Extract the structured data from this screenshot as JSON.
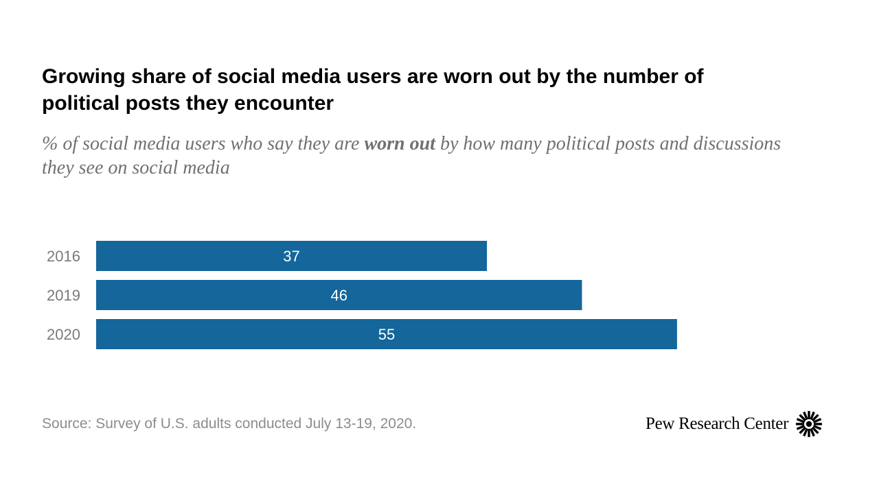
{
  "title": "Growing share of social media users are worn out by the number of political posts they encounter",
  "subtitle": {
    "before": "% of social media users who say they are ",
    "emphasis": "worn out",
    "after": " by how many political posts and discussions they see on social media"
  },
  "chart_data": {
    "type": "bar",
    "orientation": "horizontal",
    "categories": [
      "2016",
      "2019",
      "2020"
    ],
    "values": [
      37,
      46,
      55
    ],
    "title": "",
    "xlabel": "",
    "ylabel": "",
    "xlim": [
      0,
      100
    ],
    "grid": false,
    "legend": "none",
    "bar_color": "#14669b",
    "label_color": "#ffffff"
  },
  "source": "Source: Survey of U.S. adults conducted July 13-19, 2020.",
  "brand": {
    "name": "Pew Research Center",
    "logo_icon": "pew-sunburst-icon"
  }
}
